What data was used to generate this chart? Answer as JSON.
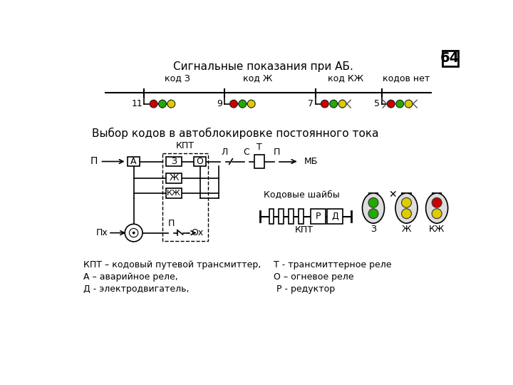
{
  "title1": "Сигнальные показания при АБ.",
  "title2": "Выбор кодов в автоблокировке постоянного тока",
  "page_num": "64",
  "bg_color": "#ffffff",
  "signal_labels": [
    "код З",
    "код Ж",
    "код КЖ",
    "кодов нет"
  ],
  "signal_numbers": [
    "11",
    "9",
    "7",
    "5"
  ],
  "legend_left": [
    "КПТ – кодовый путевой трансмиттер,",
    "А – аварийное реле,",
    "Д - электродвигатель,"
  ],
  "legend_right": [
    "Т - трансмиттерное реле",
    "О – огневое реле",
    " Р - редуктор"
  ]
}
